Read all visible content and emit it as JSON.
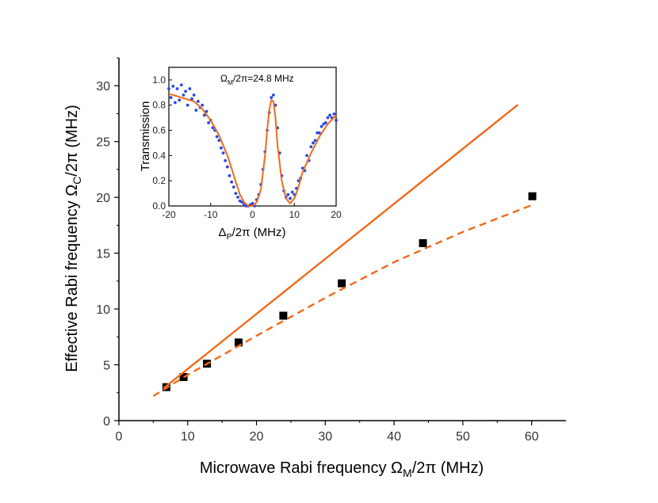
{
  "chart_data": [
    {
      "type": "scatter",
      "title": "",
      "xlabel": {
        "main": "Microwave Rabi frequency Ω",
        "sub": "M",
        "tail": "/2π (MHz)"
      },
      "ylabel": {
        "main": "Effective Rabi frequency Ω",
        "sub": "C",
        "tail": "/2π (MHz)"
      },
      "xlim": [
        0,
        65
      ],
      "ylim": [
        0,
        32.5
      ],
      "xticks": [
        "0",
        "10",
        "20",
        "30",
        "40",
        "50",
        "60"
      ],
      "yticks": [
        "0",
        "5",
        "10",
        "15",
        "20",
        "25",
        "30"
      ],
      "series": [
        {
          "name": "measured",
          "style": "square",
          "color": "#000000",
          "x": [
            6.9,
            9.4,
            12.8,
            17.4,
            23.9,
            32.4,
            44.2,
            60.1
          ],
          "y": [
            3.0,
            3.9,
            5.1,
            7.0,
            9.4,
            12.3,
            15.9,
            20.1
          ]
        },
        {
          "name": "linear",
          "style": "solid-line",
          "color": "#ef6a1a",
          "x": [
            6.5,
            58.0
          ],
          "y": [
            2.9,
            28.3
          ]
        },
        {
          "name": "nonlinear",
          "style": "dashed-line",
          "color": "#ef6a1a",
          "x": [
            5,
            10,
            20,
            30,
            40,
            50,
            60
          ],
          "y": [
            2.2,
            4.1,
            7.6,
            11.0,
            14.2,
            16.9,
            19.3
          ]
        }
      ]
    },
    {
      "type": "scatter",
      "annotation": {
        "main": "Ω",
        "sub": "M",
        "tail": "/2π=24.8 MHz"
      },
      "xlabel": {
        "main": "Δ",
        "sub": "P",
        "tail": "/2π (MHz)"
      },
      "ylabel": "Transmission",
      "xlim": [
        -20,
        20
      ],
      "ylim": [
        0,
        1.1
      ],
      "xticks": [
        "-20",
        "-10",
        "0",
        "10",
        "20"
      ],
      "yticks": [
        "0.0",
        "0.2",
        "0.4",
        "0.6",
        "0.8",
        "1.0"
      ],
      "series": [
        {
          "name": "data",
          "style": "dots",
          "color": "#2848e0",
          "x": [
            -20,
            -19.5,
            -19,
            -18.5,
            -18,
            -17.5,
            -17,
            -16.5,
            -16,
            -15.5,
            -15,
            -14.5,
            -14,
            -13.5,
            -13,
            -12.5,
            -12,
            -11.5,
            -11,
            -10.5,
            -10,
            -9.5,
            -9,
            -8.5,
            -8,
            -7.5,
            -7,
            -6.5,
            -6,
            -5.5,
            -5,
            -4.5,
            -4,
            -3.5,
            -3,
            -2.5,
            -2,
            -1.5,
            -1,
            -0.5,
            0,
            0.5,
            1,
            1.5,
            2,
            2.5,
            3,
            3.5,
            4,
            4.5,
            5,
            5.5,
            6,
            6.5,
            7,
            7.5,
            8,
            8.5,
            9,
            9.5,
            10,
            10.5,
            11,
            11.5,
            12,
            12.5,
            13,
            13.5,
            14,
            14.5,
            15,
            15.5,
            16,
            16.5,
            17,
            17.5,
            18,
            18.5,
            19,
            19.5,
            20
          ],
          "y": [
            0.93,
            0.86,
            0.95,
            0.82,
            0.93,
            0.84,
            0.96,
            0.88,
            0.91,
            0.8,
            0.93,
            0.85,
            0.88,
            0.76,
            0.83,
            0.78,
            0.8,
            0.72,
            0.75,
            0.66,
            0.68,
            0.62,
            0.6,
            0.55,
            0.52,
            0.46,
            0.42,
            0.36,
            0.31,
            0.24,
            0.19,
            0.15,
            0.1,
            0.07,
            0.04,
            0.03,
            0.01,
            0.0,
            0.0,
            0.01,
            0.02,
            0.0,
            0.05,
            0.09,
            0.17,
            0.29,
            0.43,
            0.6,
            0.74,
            0.86,
            0.88,
            0.8,
            0.62,
            0.42,
            0.24,
            0.12,
            0.07,
            0.09,
            0.06,
            0.11,
            0.09,
            0.14,
            0.2,
            0.22,
            0.3,
            0.28,
            0.4,
            0.36,
            0.47,
            0.5,
            0.52,
            0.58,
            0.58,
            0.63,
            0.65,
            0.66,
            0.7,
            0.72,
            0.7,
            0.73,
            0.68
          ]
        },
        {
          "name": "fit",
          "style": "solid-line",
          "color": "#ef6a1a",
          "x": [
            -20,
            -18,
            -16,
            -14,
            -12,
            -10,
            -8,
            -6,
            -5,
            -4,
            -3,
            -2,
            -1,
            0,
            1,
            2,
            3,
            3.5,
            4,
            4.5,
            5,
            5.5,
            6,
            7,
            8,
            9,
            10,
            11,
            12,
            14,
            16,
            18,
            20
          ],
          "y": [
            0.89,
            0.87,
            0.85,
            0.83,
            0.77,
            0.68,
            0.56,
            0.4,
            0.3,
            0.19,
            0.09,
            0.03,
            0.0,
            0.0,
            0.03,
            0.13,
            0.4,
            0.6,
            0.76,
            0.84,
            0.83,
            0.7,
            0.48,
            0.2,
            0.06,
            0.02,
            0.06,
            0.15,
            0.27,
            0.42,
            0.55,
            0.65,
            0.72
          ]
        }
      ]
    }
  ]
}
